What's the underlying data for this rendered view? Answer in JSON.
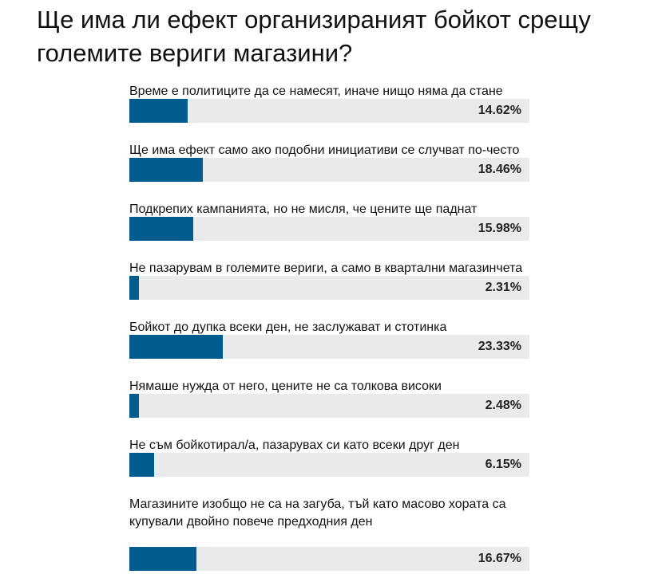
{
  "poll": {
    "title": "Ще има ли ефект организираният бойкот срещу големите вериги магазини?",
    "bar_color": "#005b8f",
    "track_color": "#e9eaec",
    "options": [
      {
        "label": "Време е политиците да се намесят, иначе нищо няма да стане",
        "percent_label": "14.62%",
        "percent": 14.62
      },
      {
        "label": "Ще има ефект само ако подобни инициативи се случват по-често",
        "percent_label": "18.46%",
        "percent": 18.46
      },
      {
        "label": "Подкрепих кампанията, но не мисля, че цените ще паднат",
        "percent_label": "15.98%",
        "percent": 15.98
      },
      {
        "label": "Не пазарувам в големите вериги, а само в квартални магазинчета",
        "percent_label": "2.31%",
        "percent": 2.31
      },
      {
        "label": "Бойкот до дупка всеки ден, не заслужават и стотинка",
        "percent_label": "23.33%",
        "percent": 23.33
      },
      {
        "label": "Нямаше нужда от него, цените не са толкова високи",
        "percent_label": "2.48%",
        "percent": 2.48
      },
      {
        "label": "Не съм бойкотирал/а, пазарувах си като всеки друг ден",
        "percent_label": "6.15%",
        "percent": 6.15
      },
      {
        "label": "Магазините изобщо не са на загуба, тъй като масово хората са купували двойно повече предходния ден",
        "percent_label": "16.67%",
        "percent": 16.67
      }
    ]
  }
}
